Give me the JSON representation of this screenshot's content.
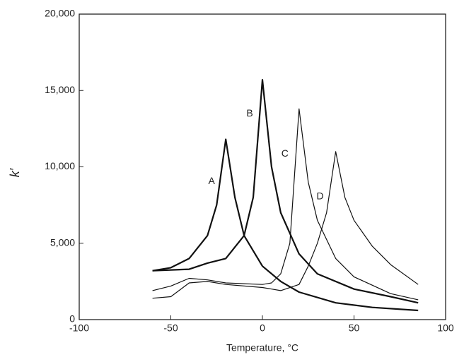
{
  "chart_data": {
    "type": "line",
    "x_label": "Temperature, °C",
    "y_label": "k′",
    "xlim": [
      -100,
      100
    ],
    "xticks": [
      -100,
      -50,
      0,
      50,
      100
    ],
    "ylim": [
      0,
      20000
    ],
    "yticks": [
      0,
      {
        "value": 5000,
        "label": "5,000"
      },
      {
        "value": 10000,
        "label": "10,000"
      },
      {
        "value": 15000,
        "label": "15,000"
      },
      {
        "value": 20000,
        "label": "20,000"
      }
    ],
    "grid": false,
    "series": [
      {
        "name": "A",
        "color": "#111111",
        "line_width": 2.2,
        "x": [
          -60,
          -50,
          -40,
          -30,
          -25,
          -20,
          -15,
          -10,
          0,
          10,
          20,
          40,
          60,
          85
        ],
        "values": [
          3200,
          3400,
          4000,
          5500,
          7500,
          11800,
          8000,
          5500,
          3500,
          2500,
          1800,
          1100,
          800,
          600
        ]
      },
      {
        "name": "B",
        "color": "#111111",
        "line_width": 2.2,
        "x": [
          -60,
          -40,
          -30,
          -20,
          -10,
          -5,
          0,
          5,
          10,
          20,
          30,
          50,
          70,
          85
        ],
        "values": [
          3200,
          3300,
          3700,
          4000,
          5500,
          8000,
          15700,
          10000,
          7000,
          4300,
          3000,
          2000,
          1500,
          1100
        ]
      },
      {
        "name": "C",
        "color": "#111111",
        "line_width": 1.2,
        "x": [
          -60,
          -50,
          -40,
          -30,
          -20,
          0,
          5,
          10,
          15,
          20,
          25,
          30,
          40,
          50,
          70,
          85
        ],
        "values": [
          1900,
          2200,
          2700,
          2600,
          2400,
          2300,
          2400,
          3000,
          5000,
          13800,
          9000,
          6500,
          4000,
          2800,
          1700,
          1300
        ]
      },
      {
        "name": "D",
        "color": "#111111",
        "line_width": 1.2,
        "x": [
          -60,
          -50,
          -40,
          -30,
          -20,
          0,
          10,
          20,
          25,
          30,
          35,
          40,
          45,
          50,
          60,
          70,
          85
        ],
        "values": [
          1400,
          1500,
          2400,
          2500,
          2300,
          2100,
          1900,
          2300,
          3500,
          5000,
          7000,
          11000,
          8000,
          6500,
          4800,
          3600,
          2300
        ]
      }
    ]
  }
}
